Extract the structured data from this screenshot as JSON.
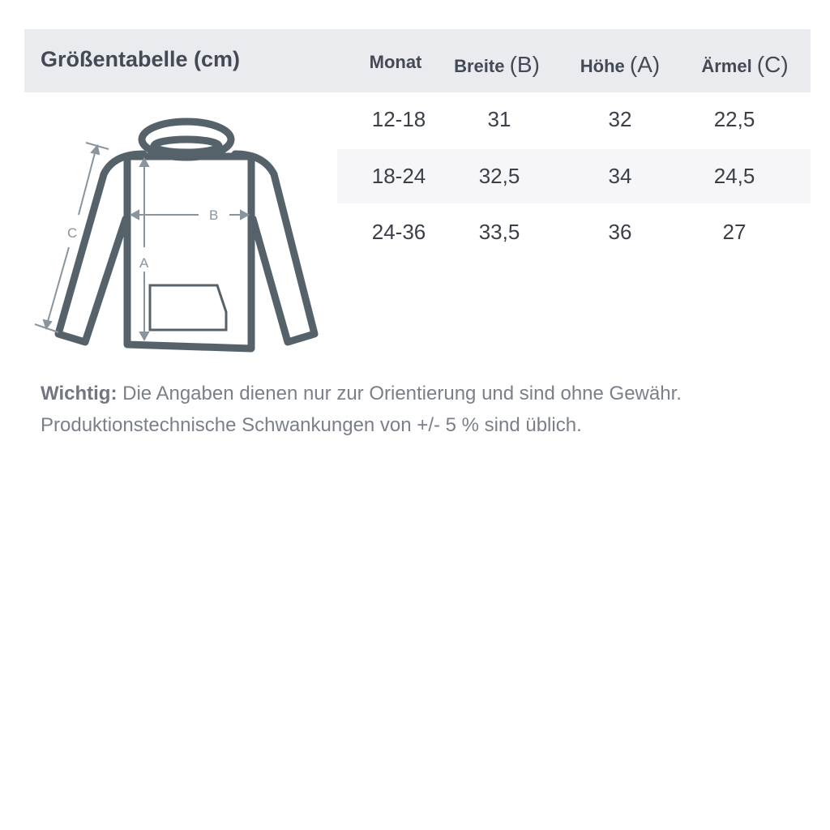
{
  "title": "Größentabelle (cm)",
  "columns": [
    {
      "label": "Monat",
      "letter": ""
    },
    {
      "label": "Breite ",
      "letter": "(B)"
    },
    {
      "label": "Höhe ",
      "letter": "(A)"
    },
    {
      "label": "Ärmel ",
      "letter": "(C)"
    }
  ],
  "rows": [
    [
      "12-18",
      "31",
      "32",
      "22,5"
    ],
    [
      "18-24",
      "32,5",
      "34",
      "24,5"
    ],
    [
      "24-36",
      "33,5",
      "36",
      "27"
    ]
  ],
  "diagram": {
    "label_a": "A",
    "label_b": "B",
    "label_c": "C"
  },
  "note": {
    "label": "Wichtig:",
    "line1": " Die Angaben dienen nur zur Orientierung und sind ohne Gewähr.",
    "line2": "Produktionstechnische Schwankungen von +/- 5 % sind üblich."
  },
  "colors": {
    "header_bg": "#eaebef",
    "garment": "#56626a",
    "arrows": "#8a949c"
  }
}
